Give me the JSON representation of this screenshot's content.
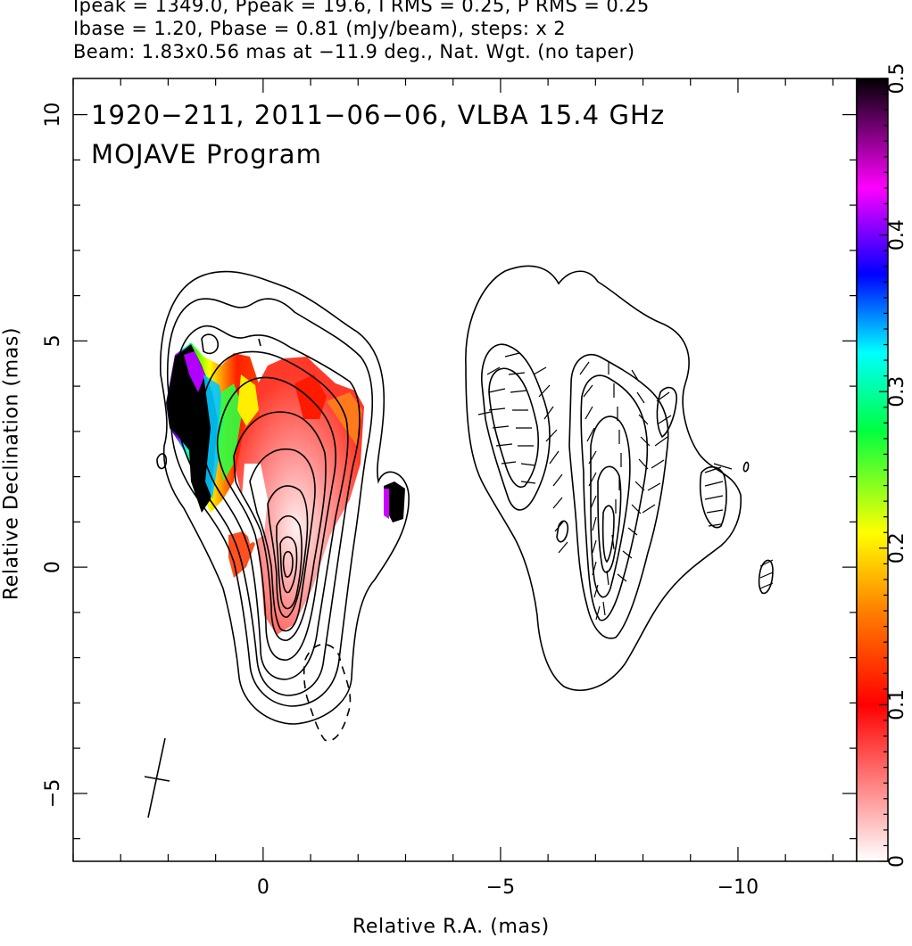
{
  "header": {
    "line1": "Ipeak = 1349.0, Ppeak = 19.6, I RMS = 0.25, P RMS = 0.25",
    "line2": "Ibase = 1.20, Pbase = 0.81 (mJy/beam), steps: x 2",
    "line3": "Beam: 1.83x0.56 mas at −11.9 deg., Nat. Wgt. (no taper)"
  },
  "title": {
    "line1": "1920−211, 2011−06−06, VLBA 15.4 GHz",
    "line2": "MOJAVE Program"
  },
  "chart_data": {
    "type": "heatmap",
    "xlabel": "Relative R.A. (mas)",
    "ylabel": "Relative Declination (mas)",
    "xlim": [
      4,
      -12.5
    ],
    "ylim": [
      -6.5,
      10.8
    ],
    "x_reversed": true,
    "x_ticks": [
      0,
      -5,
      -10
    ],
    "x_tick_labels": [
      "0",
      "−5",
      "−10"
    ],
    "y_ticks": [
      -5,
      0,
      5,
      10
    ],
    "y_tick_labels": [
      "−5",
      "0",
      "5",
      "10"
    ],
    "colorbar": {
      "range": [
        0,
        0.5
      ],
      "ticks": [
        0,
        0.1,
        0.2,
        0.3,
        0.4,
        0.5
      ],
      "tick_labels": [
        "0",
        "0.1",
        "0.2",
        "0.3",
        "0.4",
        "0.5"
      ],
      "colors": [
        "#ffffff",
        "#ff8080",
        "#ff0000",
        "#ff8000",
        "#ffff00",
        "#00ff40",
        "#00ffff",
        "#0000ff",
        "#ff00ff",
        "#000000"
      ]
    },
    "stokes_I_contour_levels_mJy_per_beam": [
      1.2,
      2.4,
      4.8,
      9.6,
      19.2,
      38.4,
      76.8,
      153.6,
      307.2,
      614.4,
      1228.8
    ],
    "polarization_contour_base_mJy_per_beam": 0.81,
    "beam": {
      "major_mas": 1.83,
      "minor_mas": 0.56,
      "pa_deg": -11.9
    },
    "peak_I_mJy_per_beam": 1349.0,
    "peak_P_mJy_per_beam": 19.6
  }
}
